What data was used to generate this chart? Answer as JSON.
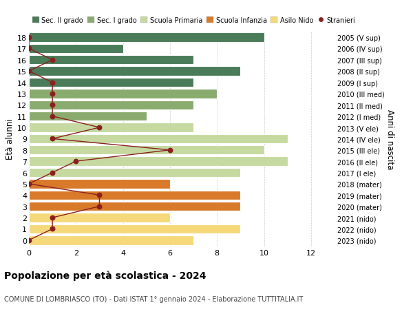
{
  "ages": [
    18,
    17,
    16,
    15,
    14,
    13,
    12,
    11,
    10,
    9,
    8,
    7,
    6,
    5,
    4,
    3,
    2,
    1,
    0
  ],
  "years": [
    "2005 (V sup)",
    "2006 (IV sup)",
    "2007 (III sup)",
    "2008 (II sup)",
    "2009 (I sup)",
    "2010 (III med)",
    "2011 (II med)",
    "2012 (I med)",
    "2013 (V ele)",
    "2014 (IV ele)",
    "2015 (III ele)",
    "2016 (II ele)",
    "2017 (I ele)",
    "2018 (mater)",
    "2019 (mater)",
    "2020 (mater)",
    "2021 (nido)",
    "2022 (nido)",
    "2023 (nido)"
  ],
  "bar_values": [
    10,
    4,
    7,
    9,
    7,
    8,
    7,
    5,
    7,
    11,
    10,
    11,
    9,
    6,
    9,
    9,
    6,
    9,
    7
  ],
  "bar_colors": [
    "#4a7c59",
    "#4a7c59",
    "#4a7c59",
    "#4a7c59",
    "#4a7c59",
    "#8aab6e",
    "#8aab6e",
    "#8aab6e",
    "#c5d9a0",
    "#c5d9a0",
    "#c5d9a0",
    "#c5d9a0",
    "#c5d9a0",
    "#d97a2a",
    "#d97a2a",
    "#d97a2a",
    "#f5d87a",
    "#f5d87a",
    "#f5d87a"
  ],
  "stranieri_values": [
    0,
    0,
    1,
    0,
    1,
    1,
    1,
    1,
    3,
    1,
    6,
    2,
    1,
    0,
    3,
    3,
    1,
    1,
    0
  ],
  "stranieri_color": "#8b2020",
  "legend_labels": [
    "Sec. II grado",
    "Sec. I grado",
    "Scuola Primaria",
    "Scuola Infanzia",
    "Asilo Nido",
    "Stranieri"
  ],
  "legend_colors": [
    "#4a7c59",
    "#8aab6e",
    "#c5d9a0",
    "#d97a2a",
    "#f5d87a",
    "#8b2020"
  ],
  "title": "Popolazione per età scolastica - 2024",
  "subtitle": "COMUNE DI LOMBRIASCO (TO) - Dati ISTAT 1° gennaio 2024 - Elaborazione TUTTITALIA.IT",
  "ylabel": "Età alunni",
  "right_ylabel": "Anni di nascita",
  "xlabel_vals": [
    0,
    2,
    4,
    6,
    8,
    10,
    12
  ],
  "xlim": [
    0,
    13
  ],
  "bg_color": "#ffffff",
  "bar_edge_color": "#ffffff",
  "grid_color": "#cccccc"
}
